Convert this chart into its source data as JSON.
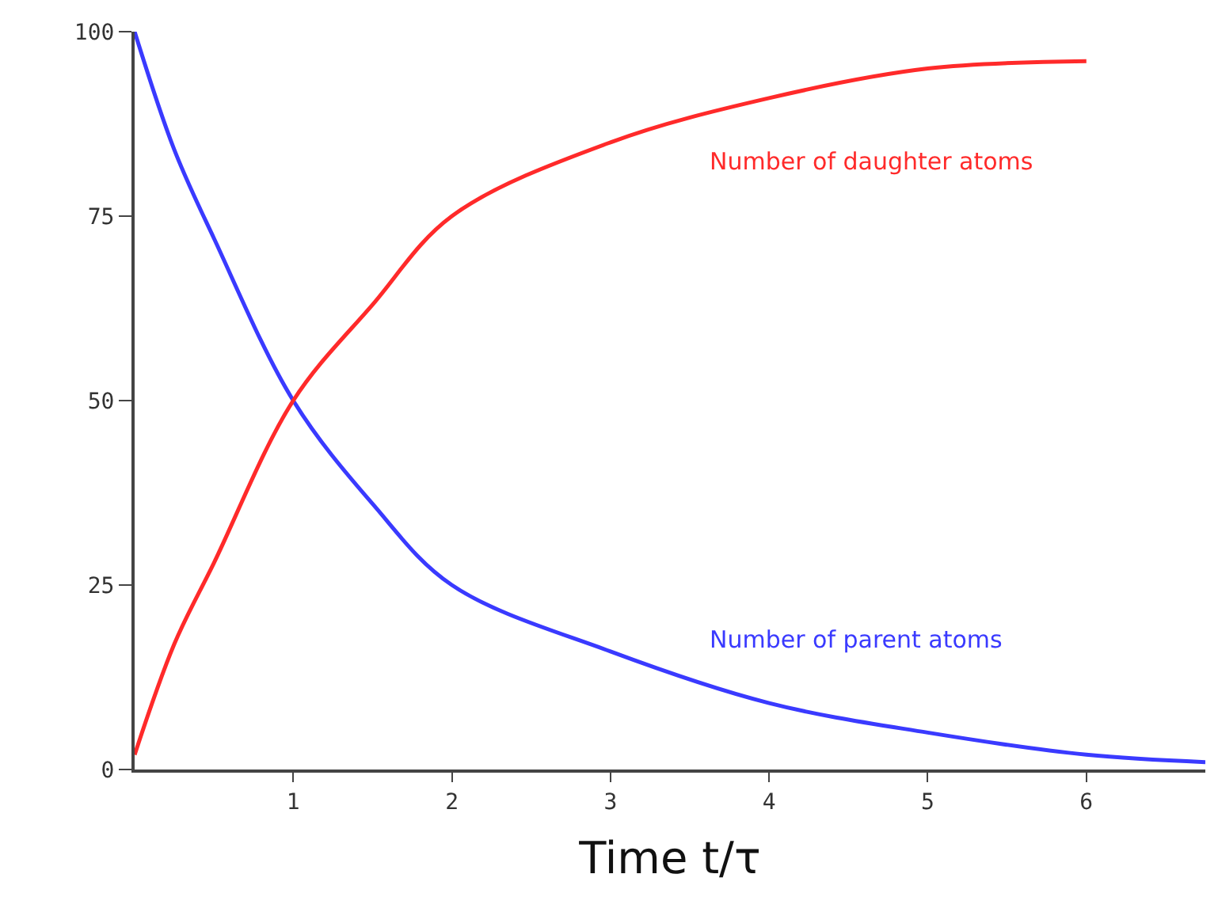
{
  "chart_data": {
    "type": "line",
    "xlabel": "Time t/τ",
    "x": [
      0,
      0.25,
      0.5,
      1,
      1.5,
      2,
      3,
      4,
      5,
      6,
      6.75
    ],
    "series": [
      {
        "name": "Number of parent atoms",
        "color": "#3a3aff",
        "values": [
          100,
          84,
          72,
          50,
          36,
          25,
          16,
          9,
          5,
          2,
          1
        ]
      },
      {
        "name": "Number of daughter atoms",
        "color": "#ff2a2a",
        "values": [
          2,
          17,
          28,
          50,
          63,
          75,
          85,
          91,
          95,
          96,
          null
        ]
      }
    ],
    "xlim": [
      0,
      6.75
    ],
    "xticks": [
      1,
      2,
      3,
      4,
      5,
      6
    ],
    "ylim": [
      0,
      100
    ],
    "yticks": [
      0,
      25,
      50,
      75,
      100
    ],
    "grid": false,
    "legend": false,
    "marker": "none",
    "line_style": "solid"
  }
}
